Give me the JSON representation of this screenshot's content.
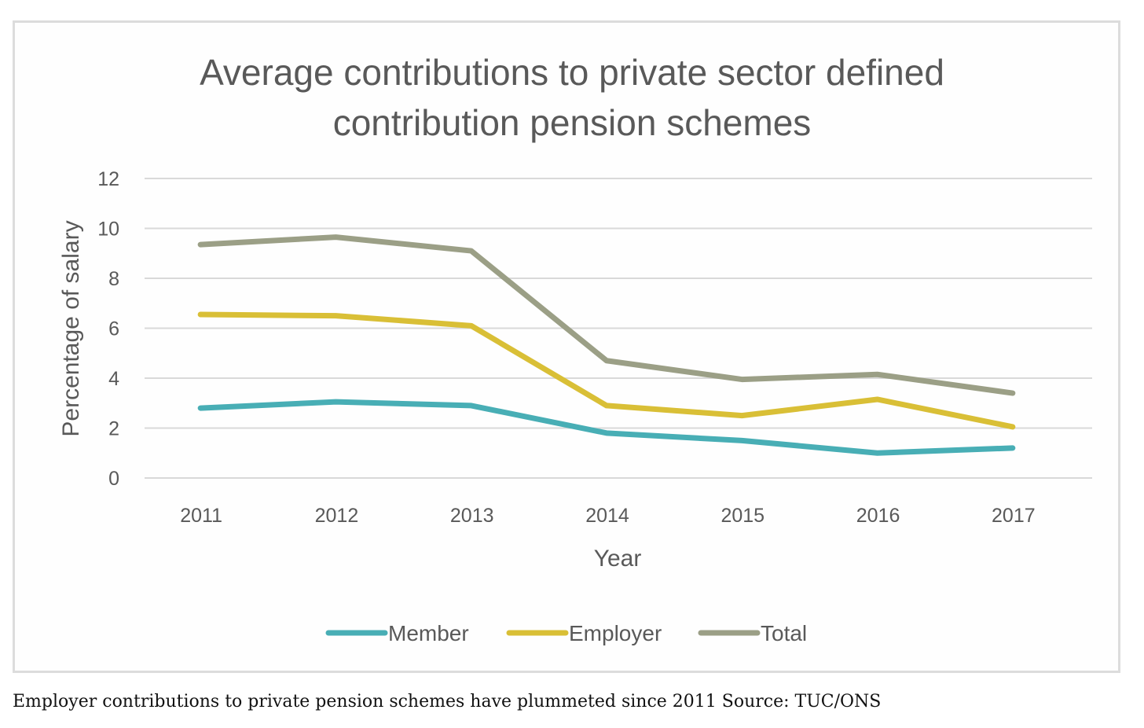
{
  "chart_data": {
    "type": "line",
    "title": "Average contributions to private sector defined contribution pension schemes",
    "title_lines": [
      "Average contributions to private sector defined",
      "contribution pension schemes"
    ],
    "xlabel": "Year",
    "ylabel": "Percentage of salary",
    "categories": [
      "2011",
      "2012",
      "2013",
      "2014",
      "2015",
      "2016",
      "2017"
    ],
    "ylim": [
      0,
      12
    ],
    "yticks": [
      0,
      2,
      4,
      6,
      8,
      10,
      12
    ],
    "grid": true,
    "legend_position": "bottom",
    "series": [
      {
        "name": "Member",
        "color": "#48aeb5",
        "values": [
          2.8,
          3.05,
          2.9,
          1.8,
          1.5,
          1.0,
          1.2
        ]
      },
      {
        "name": "Employer",
        "color": "#d9bf36",
        "values": [
          6.55,
          6.5,
          6.1,
          2.9,
          2.5,
          3.15,
          2.05
        ]
      },
      {
        "name": "Total",
        "color": "#9b9f86",
        "values": [
          9.35,
          9.65,
          9.1,
          4.7,
          3.95,
          4.15,
          3.4
        ]
      }
    ]
  },
  "caption": "Employer contributions to private pension schemes have plummeted since 2011 Source: TUC/ONS"
}
